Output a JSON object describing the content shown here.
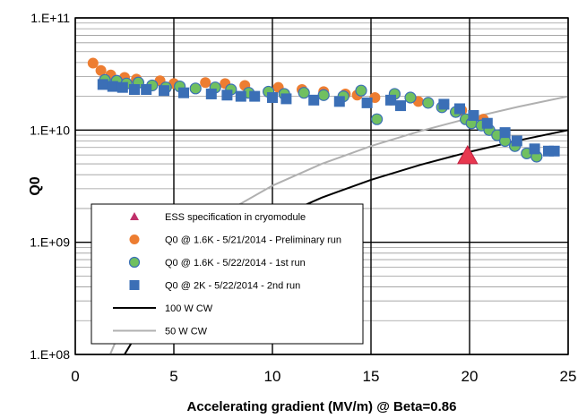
{
  "chart_data": {
    "type": "scatter",
    "xlabel": "Accelerating gradient (MV/m)  @ Beta=0.86",
    "ylabel": "Q0",
    "xlim": [
      0,
      25
    ],
    "ylim": [
      100000000,
      100000000000
    ],
    "yscale": "log",
    "x_ticks": [
      {
        "value": 0,
        "label": "0"
      },
      {
        "value": 5,
        "label": "5"
      },
      {
        "value": 10,
        "label": "10"
      },
      {
        "value": 15,
        "label": "15"
      },
      {
        "value": 20,
        "label": "20"
      },
      {
        "value": 25,
        "label": "25"
      }
    ],
    "y_ticks": [
      {
        "value": 100000000,
        "label": "1.E+08"
      },
      {
        "value": 1000000000,
        "label": "1.E+09"
      },
      {
        "value": 10000000000,
        "label": "1.E+10"
      },
      {
        "value": 100000000000,
        "label": "1.E+11"
      }
    ],
    "grid": true,
    "legend_position": "bottom-left",
    "series": [
      {
        "name": "ESS specification in cryomodule",
        "marker": "triangle",
        "color": "#e8384f",
        "legend_color": "#c0306a",
        "x": [
          19.9
        ],
        "y": [
          5900000000
        ]
      },
      {
        "name": "Q0 @ 1.6K - 5/21/2014 - Preliminary run",
        "marker": "circle",
        "color": "#ed7d31",
        "x": [
          0.9,
          1.3,
          1.8,
          2.5,
          3.1,
          4.3,
          5.0,
          6.6,
          7.6,
          8.6,
          10.3,
          11.5,
          12.6,
          13.7,
          14.3,
          15.2,
          16.0,
          17.4,
          18.7,
          19.6,
          20.7
        ],
        "y": [
          39500000000,
          34000000000,
          31000000000,
          29500000000,
          28500000000,
          27500000000,
          26000000000,
          26500000000,
          26000000000,
          25000000000,
          24000000000,
          23000000000,
          22000000000,
          21000000000,
          20500000000,
          19500000000,
          18500000000,
          18000000000,
          17000000000,
          15000000000,
          12500000000
        ]
      },
      {
        "name": "Q0 @ 1.6K - 5/22/2014 - 1st run",
        "marker": "circle",
        "color": "#70c060",
        "x": [
          1.5,
          2.1,
          2.6,
          3.2,
          3.9,
          4.6,
          5.3,
          6.1,
          7.1,
          7.9,
          8.8,
          9.8,
          10.6,
          11.6,
          12.6,
          13.6,
          14.5,
          15.3,
          16.2,
          17.0,
          17.9,
          18.6,
          19.3,
          19.8,
          20.1,
          20.6,
          21.0,
          21.4,
          21.8,
          22.3,
          22.9,
          23.4
        ],
        "y": [
          28000000000,
          27500000000,
          26000000000,
          26500000000,
          25000000000,
          24000000000,
          24500000000,
          23500000000,
          24000000000,
          23000000000,
          21500000000,
          22000000000,
          21000000000,
          21500000000,
          20500000000,
          20000000000,
          22500000000,
          12500000000,
          21000000000,
          19500000000,
          17500000000,
          16000000000,
          14500000000,
          12500000000,
          11500000000,
          11000000000,
          10000000000,
          9000000000,
          8000000000,
          7200000000,
          6200000000,
          5800000000
        ]
      },
      {
        "name": "Q0 @ 2K - 5/22/2014 - 2nd run",
        "marker": "square",
        "color": "#3b6fb6",
        "x": [
          1.4,
          1.9,
          2.4,
          3.0,
          3.6,
          4.5,
          5.5,
          6.9,
          7.7,
          8.4,
          9.1,
          10.0,
          10.7,
          12.1,
          13.4,
          14.8,
          16.0,
          16.5,
          18.7,
          19.5,
          20.2,
          20.9,
          21.8,
          22.4,
          23.3,
          24.0,
          24.3
        ],
        "y": [
          25500000000,
          24500000000,
          24000000000,
          23000000000,
          23000000000,
          22500000000,
          21500000000,
          21000000000,
          20500000000,
          20000000000,
          20000000000,
          19500000000,
          19000000000,
          18500000000,
          18000000000,
          17500000000,
          18500000000,
          16500000000,
          17000000000,
          15500000000,
          13500000000,
          11500000000,
          9500000000,
          8000000000,
          6800000000,
          6500000000,
          6500000000
        ]
      },
      {
        "name": "100 W CW",
        "marker": "line",
        "color": "#000000",
        "x": [
          2.5,
          3.5,
          5,
          7.5,
          10,
          12.5,
          15,
          17.5,
          20,
          22.5,
          25
        ],
        "y": [
          100000000,
          196000000,
          400000000,
          900000000,
          1600000000,
          2500000000,
          3600000000,
          4900000000,
          6400000000,
          8100000000,
          10000000000
        ]
      },
      {
        "name": "50 W CW",
        "marker": "line",
        "color": "#b0b0b0",
        "x": [
          1.77,
          2.5,
          3.5,
          5,
          7.5,
          10,
          12.5,
          15,
          17.5,
          20,
          22.5,
          25
        ],
        "y": [
          100000000,
          200000000,
          392000000,
          800000000,
          1800000000,
          3200000000,
          5000000000,
          7200000000,
          9800000000,
          12800000000,
          16200000000,
          20000000000
        ]
      }
    ]
  }
}
